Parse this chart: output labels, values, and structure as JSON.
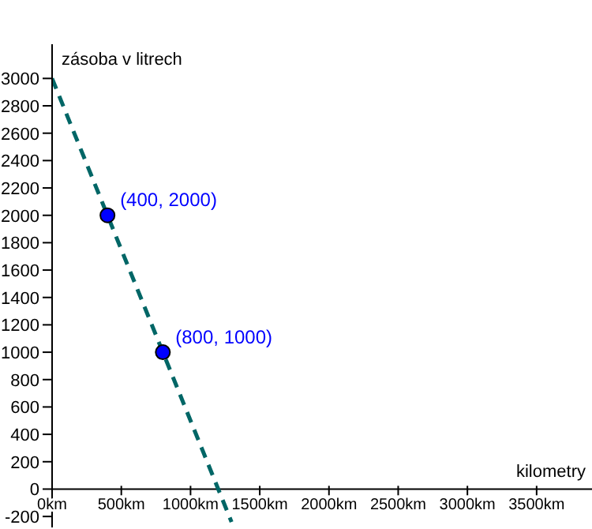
{
  "chart_data": {
    "type": "line",
    "xlabel": "kilometry",
    "ylabel": "zásoba v litrech",
    "xlim": [
      0,
      3900
    ],
    "ylim": [
      -280,
      3250
    ],
    "xticks": [
      {
        "value": 0,
        "label": "0km"
      },
      {
        "value": 500,
        "label": "500km"
      },
      {
        "value": 1000,
        "label": "1000km"
      },
      {
        "value": 1500,
        "label": "1500km"
      },
      {
        "value": 2000,
        "label": "2000km"
      },
      {
        "value": 2500,
        "label": "2500km"
      },
      {
        "value": 3000,
        "label": "3000km"
      },
      {
        "value": 3500,
        "label": "3500km"
      }
    ],
    "yticks": [
      -200,
      0,
      200,
      400,
      600,
      800,
      1000,
      1200,
      1400,
      1600,
      1800,
      2000,
      2200,
      2400,
      2600,
      2800,
      3000
    ],
    "series": [
      {
        "x": [
          0,
          1296
        ],
        "values": [
          3000,
          -240
        ],
        "color": "#006666",
        "line_style": "dashed",
        "marker": "none"
      },
      {
        "type": "scatter",
        "x": [
          400,
          800
        ],
        "values": [
          2000,
          1000
        ],
        "color": "#0000ff",
        "marker": "circle"
      }
    ],
    "annotations": [
      {
        "text": "(400, 2000)",
        "x": 400,
        "y": 2000
      },
      {
        "text": "(800, 1000)",
        "x": 800,
        "y": 1000
      }
    ]
  }
}
